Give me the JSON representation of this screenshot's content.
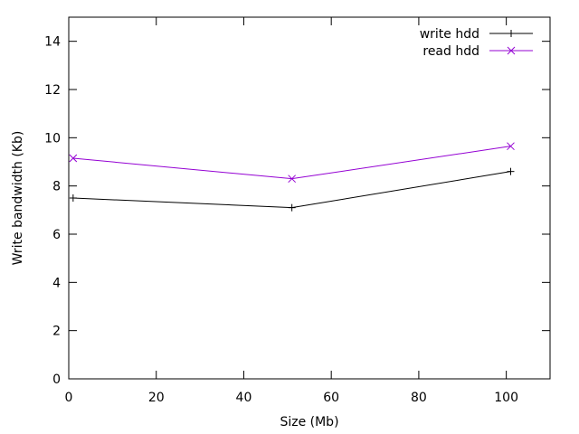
{
  "chart_data": {
    "type": "line",
    "title": "",
    "xlabel": "Size (Mb)",
    "ylabel": "Write bandwidth (Kb)",
    "xlim": [
      0,
      110
    ],
    "ylim": [
      0,
      15
    ],
    "x_ticks": [
      0,
      20,
      40,
      60,
      80,
      100
    ],
    "y_ticks": [
      0,
      2,
      4,
      6,
      8,
      10,
      12,
      14
    ],
    "grid": false,
    "legend_position": "top-right",
    "series": [
      {
        "name": "write hdd",
        "marker": "plus",
        "color": "#000000",
        "x": [
          1,
          51,
          101
        ],
        "y": [
          7.5,
          7.1,
          8.6
        ]
      },
      {
        "name": "read hdd",
        "marker": "cross",
        "color": "#9400d3",
        "x": [
          1,
          51,
          101
        ],
        "y": [
          9.15,
          8.3,
          9.65
        ]
      }
    ]
  }
}
